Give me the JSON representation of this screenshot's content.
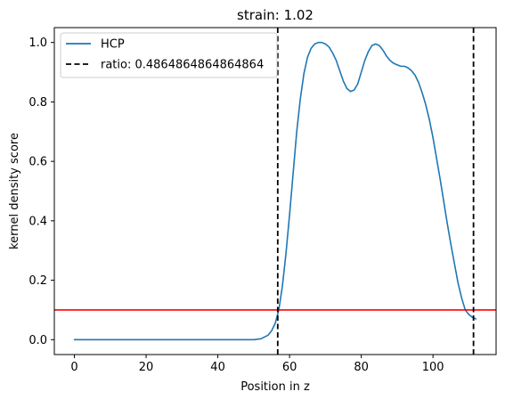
{
  "chart_data": {
    "type": "line",
    "title": "strain: 1.02",
    "xlabel": "Position in z",
    "ylabel": "kernel density score",
    "xlim": [
      -5.6,
      117.6
    ],
    "ylim": [
      -0.05,
      1.05
    ],
    "xticks": [
      0,
      20,
      40,
      60,
      80,
      100
    ],
    "xtick_labels": [
      "0",
      "20",
      "40",
      "60",
      "80",
      "100"
    ],
    "yticks": [
      0.0,
      0.2,
      0.4,
      0.6,
      0.8,
      1.0
    ],
    "ytick_labels": [
      "0.0",
      "0.2",
      "0.4",
      "0.6",
      "0.8",
      "1.0"
    ],
    "grid": false,
    "legend_placement": "top-left",
    "series": [
      {
        "name": "HCP",
        "color": "#1f77b4",
        "style": "solid",
        "x": [
          0,
          10,
          20,
          30,
          40,
          48,
          50,
          52,
          54,
          55,
          56,
          57,
          58,
          59,
          60,
          61,
          62,
          63,
          64,
          65,
          66,
          67,
          68,
          69,
          70,
          71,
          72,
          73,
          74,
          75,
          76,
          77,
          78,
          79,
          80,
          81,
          82,
          83,
          84,
          85,
          86,
          87,
          88,
          89,
          90,
          91,
          92,
          93,
          94,
          95,
          96,
          97,
          98,
          99,
          100,
          101,
          102,
          103,
          104,
          105,
          106,
          107,
          108,
          109,
          110,
          111,
          112
        ],
        "y": [
          0.0,
          0.0,
          0.0,
          0.0,
          0.0,
          0.0,
          0.0,
          0.003,
          0.015,
          0.03,
          0.055,
          0.1,
          0.18,
          0.29,
          0.42,
          0.56,
          0.7,
          0.81,
          0.895,
          0.95,
          0.98,
          0.995,
          1.0,
          1.0,
          0.995,
          0.985,
          0.965,
          0.94,
          0.905,
          0.87,
          0.845,
          0.835,
          0.84,
          0.86,
          0.9,
          0.94,
          0.97,
          0.99,
          0.995,
          0.99,
          0.975,
          0.955,
          0.94,
          0.93,
          0.925,
          0.92,
          0.92,
          0.915,
          0.905,
          0.89,
          0.865,
          0.83,
          0.79,
          0.74,
          0.68,
          0.61,
          0.54,
          0.465,
          0.39,
          0.32,
          0.255,
          0.19,
          0.14,
          0.1,
          0.085,
          0.075,
          0.07
        ]
      }
    ],
    "vlines": [
      {
        "name": "ratio: 0.4864864864864864",
        "x": [
          56.7,
          111.3
        ],
        "color": "#000000",
        "style": "dashed"
      }
    ],
    "hlines": [
      {
        "y": 0.1,
        "color": "#ff0000",
        "style": "solid"
      }
    ]
  }
}
